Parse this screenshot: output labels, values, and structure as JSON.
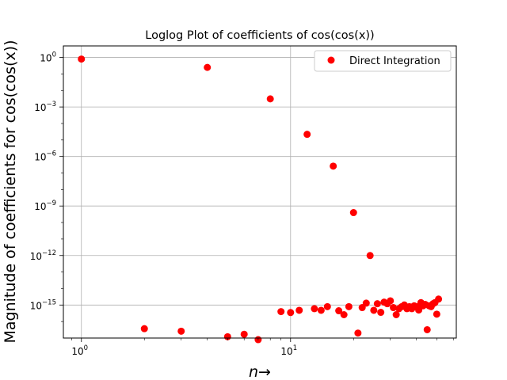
{
  "chart_data": {
    "type": "scatter",
    "title": "Loglog Plot of coefficients of cos(cos(x))",
    "xlabel": "n→",
    "ylabel": "Magnitude of coefficients for cos(cos(x))",
    "xscale": "log",
    "yscale": "log",
    "xlim": [
      0.82,
      62
    ],
    "ylim": [
      1e-17,
      5
    ],
    "grid": true,
    "legend_position": "top-right",
    "x_tick_labels": [
      {
        "value": 1,
        "base": "10",
        "exp": "0"
      },
      {
        "value": 10,
        "base": "10",
        "exp": "1"
      }
    ],
    "y_tick_labels": [
      {
        "value": 1,
        "base": "10",
        "exp": "0"
      },
      {
        "value": 0.001,
        "base": "10",
        "exp": "−3"
      },
      {
        "value": 1e-06,
        "base": "10",
        "exp": "−6"
      },
      {
        "value": 1e-09,
        "base": "10",
        "exp": "−9"
      },
      {
        "value": 1e-12,
        "base": "10",
        "exp": "−12"
      },
      {
        "value": 1e-15,
        "base": "10",
        "exp": "−15"
      }
    ],
    "series": [
      {
        "name": "Direct Integration",
        "color": "#ff0000",
        "marker": "circle",
        "x": [
          1,
          2,
          3,
          4,
          5,
          6,
          7,
          8,
          9,
          10,
          11,
          12,
          13,
          14,
          15,
          16,
          17,
          18,
          19,
          20,
          21,
          22,
          23,
          24,
          25,
          26,
          27,
          28,
          29,
          30,
          31,
          32,
          33,
          34,
          35,
          36,
          37,
          38,
          39,
          40,
          41,
          42,
          43,
          44,
          45,
          46,
          47,
          48,
          49,
          50,
          51
        ],
        "y": [
          0.8,
          3.7e-17,
          2.6e-17,
          0.25,
          1.2e-17,
          1.7e-17,
          8e-18,
          0.0031,
          4e-16,
          3.5e-16,
          4.8e-16,
          2.2e-05,
          6e-16,
          4.8e-16,
          8e-16,
          2.6e-07,
          4.5e-16,
          2.6e-16,
          8e-16,
          4e-10,
          2e-17,
          7e-16,
          1.3e-15,
          1e-12,
          4.8e-16,
          1.2e-15,
          3.6e-16,
          1.5e-15,
          1.2e-15,
          1.8e-15,
          7e-16,
          2.6e-16,
          6e-16,
          8e-16,
          1e-15,
          6e-16,
          8e-16,
          6e-16,
          9e-16,
          8e-16,
          5e-16,
          1.4e-15,
          9e-16,
          1.1e-15,
          3.2e-17,
          9e-16,
          8e-16,
          1.2e-15,
          1.4e-15,
          2.8e-16,
          2.3e-15
        ]
      }
    ]
  }
}
